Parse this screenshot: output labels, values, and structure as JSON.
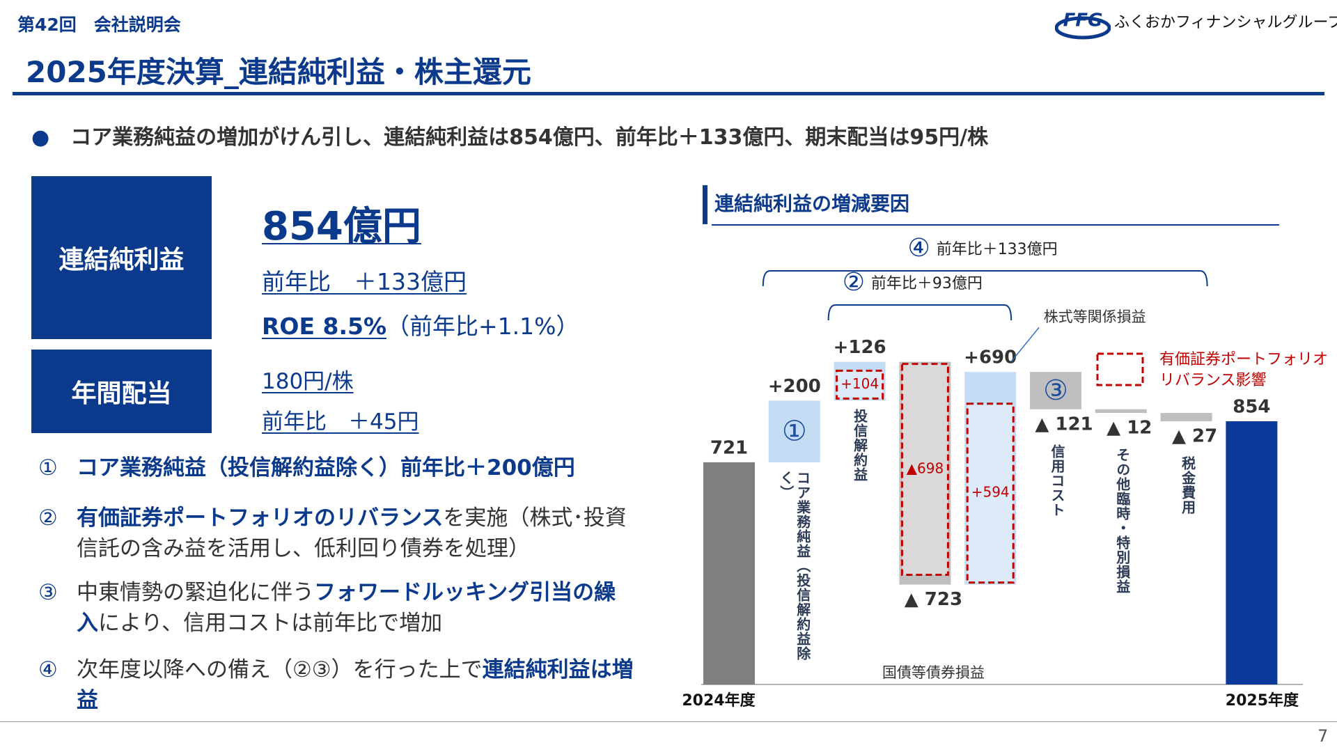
{
  "header": {
    "event": "第42回　会社説明会",
    "logo_mark": "FFG",
    "logo_text": "ふくおかフィナンシャルグループ",
    "title": "2025年度決算_連結純利益・株主還元",
    "lead": "コア業務純益の増加がけん引し、連結純利益は854億円、前年比＋133億円、期末配当は95円/株"
  },
  "summary": {
    "net_income_label": "連結純利益",
    "net_income": "854億円",
    "net_income_yoy": "前年比　＋133億円",
    "roe": "ROE  8.5%",
    "roe_yoy": "（前年比+1.1%）",
    "dividend_label": "年間配当",
    "dividend": "180円/株",
    "dividend_yoy": "前年比　＋45円"
  },
  "points": [
    {
      "num": "①",
      "parts": [
        {
          "text": "コア業務純益（投信解約益除く）前年比＋200億円",
          "bold": true
        }
      ]
    },
    {
      "num": "②",
      "parts": [
        {
          "text": "有価証券ポートフォリオのリバランス",
          "bold": true
        },
        {
          "text": "を実施（株式･投資信託の含み益を活用し、低利回り債券を処理）",
          "bold": false
        }
      ]
    },
    {
      "num": "③",
      "parts": [
        {
          "text": "中東情勢の緊迫化に伴う",
          "bold": false
        },
        {
          "text": "フォワードルッキング引当の繰入",
          "bold": true
        },
        {
          "text": "により、信用コストは前年比で増加",
          "bold": false
        }
      ]
    },
    {
      "num": "④",
      "parts": [
        {
          "text": "次年度以降への備え（②③）を行った上で",
          "bold": false
        },
        {
          "text": "連結純利益は増益",
          "bold": true
        }
      ]
    }
  ],
  "page_number": "7",
  "chart_data": {
    "type": "waterfall",
    "title": "連結純利益の増減要因",
    "categories": [
      "2024年度",
      "コア業務純益（投信解約益除く）",
      "投信解約益",
      "国債等債券損益",
      "株式等関係損益",
      "信用コスト",
      "その他臨時・特別損益",
      "税金費用",
      "2025年度"
    ],
    "values": [
      721,
      200,
      126,
      -723,
      690,
      -121,
      -12,
      -27,
      854
    ],
    "value_labels": [
      "721",
      "+200",
      "+126",
      "▲ 723",
      "+690",
      "▲ 121",
      "▲ 12",
      "▲ 27",
      "854"
    ],
    "colors": [
      "#7f7f7f",
      "#c5dcf5",
      "#c5dcf5",
      "#bfbfbf",
      "#c5dcf5",
      "#bfbfbf",
      "#bfbfbf",
      "#bfbfbf",
      "#0b3a9a"
    ],
    "badges": [
      null,
      "①",
      null,
      null,
      null,
      "③",
      null,
      null,
      null
    ],
    "breakdown": [
      null,
      null,
      {
        "value": 104,
        "label": "+104"
      },
      {
        "value": -698,
        "label": "▲698"
      },
      {
        "value": 594,
        "label": "+594"
      },
      null,
      null,
      null,
      null
    ],
    "breakdown_color": "#c00000",
    "legend": [
      "有価証券ポートフォリオ",
      "リバランス影響"
    ],
    "brackets": [
      {
        "mark": "④",
        "label": "前年比＋133億円"
      },
      {
        "mark": "②",
        "label": "前年比＋93億円"
      }
    ]
  }
}
